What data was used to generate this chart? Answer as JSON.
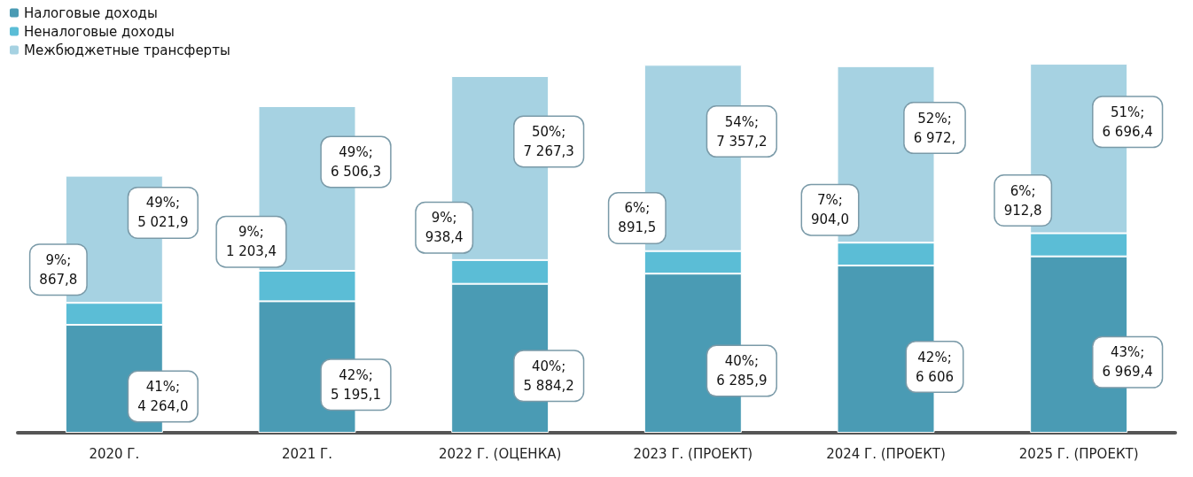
{
  "chart_data": {
    "type": "bar",
    "stacked": true,
    "legend": "top left",
    "categories": [
      "2020 Г.",
      "2021 Г.",
      "2022 Г. (ОЦЕНКА)",
      "2023 Г. (ПРОЕКТ)",
      "2024 Г. (ПРОЕКТ)",
      "2025 Г. (ПРОЕКТ)"
    ],
    "series": [
      {
        "name": "Налоговые доходы",
        "color": "#4a9bb4",
        "values": [
          4264.0,
          5195.1,
          5884.2,
          6285.9,
          6606,
          6969.4
        ],
        "value_labels": [
          "41%;\n4 264,0",
          "42%;\n5 195,1",
          "40%;\n5 884,2",
          "40%;\n6 285,9",
          "42%;\n6 606",
          "43%;\n6 969,4"
        ]
      },
      {
        "name": "Неналоговые доходы",
        "color": "#5bbdd6",
        "values": [
          867.8,
          1203.4,
          938.4,
          891.5,
          904.0,
          912.8
        ],
        "value_labels": [
          "9%;\n867,8",
          "9%;\n1 203,4",
          "9%;\n938,4",
          "6%;\n891,5",
          "7%;\n904,0",
          "6%;\n912,8"
        ]
      },
      {
        "name": "Межбюджетные трансферты",
        "color": "#a6d2e2",
        "values": [
          5021.9,
          6506.3,
          7267.3,
          7357.2,
          6972,
          6696.4
        ],
        "value_labels": [
          "49%;\n5 021,9",
          "49%;\n6 506,3",
          "50%;\n7 267,3",
          "54%;\n7 357,2",
          "52%;\n6 972,",
          "51%;\n6 696,4"
        ]
      }
    ]
  }
}
